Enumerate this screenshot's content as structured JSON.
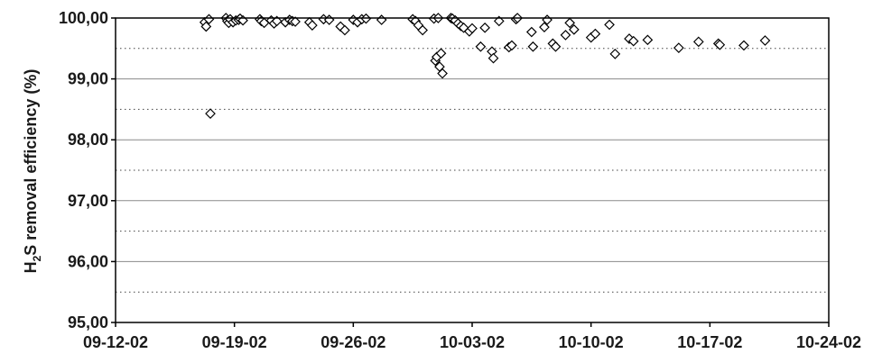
{
  "chart_data": {
    "type": "scatter",
    "title": "",
    "xlabel": "",
    "ylabel_parts": [
      "H",
      "2",
      "S removal efficiency (%)"
    ],
    "x_tick_labels": [
      "09-12-02",
      "09-19-02",
      "09-26-02",
      "10-03-02",
      "10-10-02",
      "10-17-02",
      "10-24-02"
    ],
    "y_tick_labels": [
      "95,00",
      "96,00",
      "97,00",
      "98,00",
      "99,00",
      "100,00"
    ],
    "xlim": [
      "2002-09-12",
      "2002-10-24"
    ],
    "ylim": [
      95.0,
      100.0
    ],
    "y_major_step": 1.0,
    "y_minor_dotted_step": 0.5,
    "grid": "horizontal solid major lines, dotted half-step lines",
    "marker": "hollow diamond",
    "series": [
      {
        "points": [
          [
            "2002-09-17T06:00",
            99.93
          ],
          [
            "2002-09-17T08:00",
            99.86
          ],
          [
            "2002-09-17T12:00",
            99.98
          ],
          [
            "2002-09-17T14:00",
            98.43
          ],
          [
            "2002-09-18T12:00",
            100.0
          ],
          [
            "2002-09-18T14:00",
            99.95
          ],
          [
            "2002-09-18T16:00",
            99.92
          ],
          [
            "2002-09-18T18:00",
            99.98
          ],
          [
            "2002-09-18T22:00",
            99.93
          ],
          [
            "2002-09-19T02:00",
            99.96
          ],
          [
            "2002-09-19T06:00",
            99.97
          ],
          [
            "2002-09-19T08:00",
            99.99
          ],
          [
            "2002-09-19T12:00",
            99.96
          ],
          [
            "2002-09-20T12:00",
            99.98
          ],
          [
            "2002-09-20T14:00",
            99.95
          ],
          [
            "2002-09-20T18:00",
            99.92
          ],
          [
            "2002-09-21T04:00",
            99.96
          ],
          [
            "2002-09-21T08:00",
            99.91
          ],
          [
            "2002-09-21T12:00",
            99.95
          ],
          [
            "2002-09-22T00:00",
            99.93
          ],
          [
            "2002-09-22T06:00",
            99.97
          ],
          [
            "2002-09-22T10:00",
            99.95
          ],
          [
            "2002-09-22T14:00",
            99.94
          ],
          [
            "2002-09-23T10:00",
            99.93
          ],
          [
            "2002-09-23T14:00",
            99.88
          ],
          [
            "2002-09-24T06:00",
            99.98
          ],
          [
            "2002-09-24T14:00",
            99.97
          ],
          [
            "2002-09-25T06:00",
            99.86
          ],
          [
            "2002-09-25T12:00",
            99.8
          ],
          [
            "2002-09-26T00:00",
            99.97
          ],
          [
            "2002-09-26T06:00",
            99.93
          ],
          [
            "2002-09-26T12:00",
            99.98
          ],
          [
            "2002-09-26T18:00",
            99.99
          ],
          [
            "2002-09-27T16:00",
            99.97
          ],
          [
            "2002-09-29T12:00",
            99.98
          ],
          [
            "2002-09-29T16:00",
            99.95
          ],
          [
            "2002-09-29T20:00",
            99.88
          ],
          [
            "2002-09-30T02:00",
            99.8
          ],
          [
            "2002-09-30T18:00",
            99.99
          ],
          [
            "2002-09-30T20:00",
            99.3
          ],
          [
            "2002-09-30T22:00",
            99.36
          ],
          [
            "2002-10-01T00:00",
            100.0
          ],
          [
            "2002-10-01T02:00",
            99.2
          ],
          [
            "2002-10-01T04:00",
            99.42
          ],
          [
            "2002-10-01T06:00",
            99.09
          ],
          [
            "2002-10-01T18:00",
            100.0
          ],
          [
            "2002-10-01T20:00",
            99.99
          ],
          [
            "2002-10-02T00:00",
            99.96
          ],
          [
            "2002-10-02T04:00",
            99.91
          ],
          [
            "2002-10-02T08:00",
            99.87
          ],
          [
            "2002-10-02T12:00",
            99.84
          ],
          [
            "2002-10-02T20:00",
            99.78
          ],
          [
            "2002-10-03T00:00",
            99.83
          ],
          [
            "2002-10-03T12:00",
            99.53
          ],
          [
            "2002-10-03T18:00",
            99.84
          ],
          [
            "2002-10-04T04:00",
            99.45
          ],
          [
            "2002-10-04T06:00",
            99.34
          ],
          [
            "2002-10-04T14:00",
            99.95
          ],
          [
            "2002-10-05T04:00",
            99.52
          ],
          [
            "2002-10-05T08:00",
            99.55
          ],
          [
            "2002-10-05T14:00",
            99.98
          ],
          [
            "2002-10-05T16:00",
            100.0
          ],
          [
            "2002-10-06T12:00",
            99.77
          ],
          [
            "2002-10-06T14:00",
            99.53
          ],
          [
            "2002-10-07T06:00",
            99.85
          ],
          [
            "2002-10-07T10:00",
            99.97
          ],
          [
            "2002-10-07T18:00",
            99.58
          ],
          [
            "2002-10-07T22:00",
            99.53
          ],
          [
            "2002-10-08T12:00",
            99.72
          ],
          [
            "2002-10-08T18:00",
            99.92
          ],
          [
            "2002-10-09T00:00",
            99.81
          ],
          [
            "2002-10-10T00:00",
            99.68
          ],
          [
            "2002-10-10T06:00",
            99.74
          ],
          [
            "2002-10-11T02:00",
            99.89
          ],
          [
            "2002-10-11T10:00",
            99.41
          ],
          [
            "2002-10-12T06:00",
            99.66
          ],
          [
            "2002-10-12T12:00",
            99.62
          ],
          [
            "2002-10-13T08:00",
            99.64
          ],
          [
            "2002-10-15T04:00",
            99.51
          ],
          [
            "2002-10-16T08:00",
            99.61
          ],
          [
            "2002-10-17T12:00",
            99.58
          ],
          [
            "2002-10-17T14:00",
            99.56
          ],
          [
            "2002-10-19T00:00",
            99.55
          ],
          [
            "2002-10-20T06:00",
            99.63
          ]
        ]
      }
    ]
  }
}
